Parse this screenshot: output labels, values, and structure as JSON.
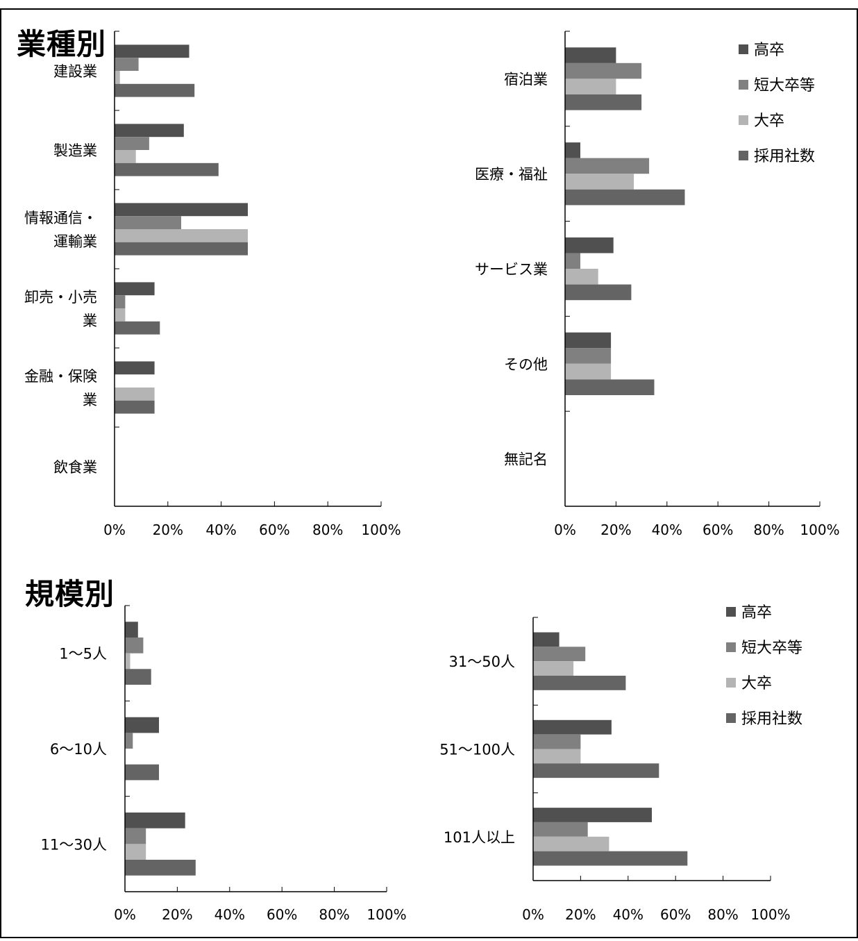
{
  "section_titles": {
    "industry": "業種別",
    "scale": "規模別"
  },
  "legend": [
    {
      "label": "高卒",
      "color": "#505050"
    },
    {
      "label": "短大卒等",
      "color": "#808080"
    },
    {
      "label": "大卒",
      "color": "#b4b4b4"
    },
    {
      "label": "採用社数",
      "color": "#646464"
    }
  ],
  "chart_data": [
    {
      "type": "bar",
      "orientation": "horizontal",
      "group": "業種別",
      "categories": [
        "建設業",
        "製造業",
        "情報通信・運輸業",
        "卸売・小売業",
        "金融・保険業",
        "飲食業"
      ],
      "category_lines": [
        [
          "建設業"
        ],
        [
          "製造業"
        ],
        [
          "情報通信・",
          "運輸業"
        ],
        [
          "卸売・小売",
          "業"
        ],
        [
          "金融・保険",
          "業"
        ],
        [
          "飲食業"
        ]
      ],
      "series": [
        {
          "name": "高卒",
          "values": [
            28,
            26,
            50,
            15,
            15,
            0
          ]
        },
        {
          "name": "短大卒等",
          "values": [
            9,
            13,
            25,
            4,
            0,
            0
          ]
        },
        {
          "name": "大卒",
          "values": [
            2,
            8,
            50,
            4,
            15,
            0
          ]
        },
        {
          "name": "採用社数",
          "values": [
            30,
            39,
            50,
            17,
            15,
            0
          ]
        }
      ],
      "xlim": [
        0,
        100
      ],
      "x_ticks": [
        "0%",
        "20%",
        "40%",
        "60%",
        "80%",
        "100%"
      ],
      "legend": "none"
    },
    {
      "type": "bar",
      "orientation": "horizontal",
      "group": "業種別",
      "categories": [
        "宿泊業",
        "医療・福祉",
        "サービス業",
        "その他",
        "無記名"
      ],
      "category_lines": [
        [
          "宿泊業"
        ],
        [
          "医療・福祉"
        ],
        [
          "サービス業"
        ],
        [
          "その他"
        ],
        [
          "無記名"
        ]
      ],
      "series": [
        {
          "name": "高卒",
          "values": [
            20,
            6,
            19,
            18,
            0
          ]
        },
        {
          "name": "短大卒等",
          "values": [
            30,
            33,
            6,
            18,
            0
          ]
        },
        {
          "name": "大卒",
          "values": [
            20,
            27,
            13,
            18,
            0
          ]
        },
        {
          "name": "採用社数",
          "values": [
            30,
            47,
            26,
            35,
            0
          ]
        }
      ],
      "xlim": [
        0,
        100
      ],
      "x_ticks": [
        "0%",
        "20%",
        "40%",
        "60%",
        "80%",
        "100%"
      ],
      "legend": "top-right"
    },
    {
      "type": "bar",
      "orientation": "horizontal",
      "group": "規模別",
      "categories": [
        "1～5人",
        "6～10人",
        "11～30人"
      ],
      "category_lines": [
        [
          "1～5人"
        ],
        [
          "6～10人"
        ],
        [
          "11～30人"
        ]
      ],
      "series": [
        {
          "name": "高卒",
          "values": [
            5,
            13,
            23
          ]
        },
        {
          "name": "短大卒等",
          "values": [
            7,
            3,
            8
          ]
        },
        {
          "name": "大卒",
          "values": [
            2,
            0,
            8
          ]
        },
        {
          "name": "採用社数",
          "values": [
            10,
            13,
            27
          ]
        }
      ],
      "xlim": [
        0,
        100
      ],
      "x_ticks": [
        "0%",
        "20%",
        "40%",
        "60%",
        "80%",
        "100%"
      ],
      "legend": "none"
    },
    {
      "type": "bar",
      "orientation": "horizontal",
      "group": "規模別",
      "categories": [
        "31～50人",
        "51～100人",
        "101人以上"
      ],
      "category_lines": [
        [
          "31～50人"
        ],
        [
          "51～100人"
        ],
        [
          "101人以上"
        ]
      ],
      "series": [
        {
          "name": "高卒",
          "values": [
            11,
            33,
            50
          ]
        },
        {
          "name": "短大卒等",
          "values": [
            22,
            20,
            23
          ]
        },
        {
          "name": "大卒",
          "values": [
            17,
            20,
            32
          ]
        },
        {
          "name": "採用社数",
          "values": [
            39,
            53,
            65
          ]
        }
      ],
      "xlim": [
        0,
        100
      ],
      "x_ticks": [
        "0%",
        "20%",
        "40%",
        "60%",
        "80%",
        "100%"
      ],
      "legend": "top-right"
    }
  ]
}
